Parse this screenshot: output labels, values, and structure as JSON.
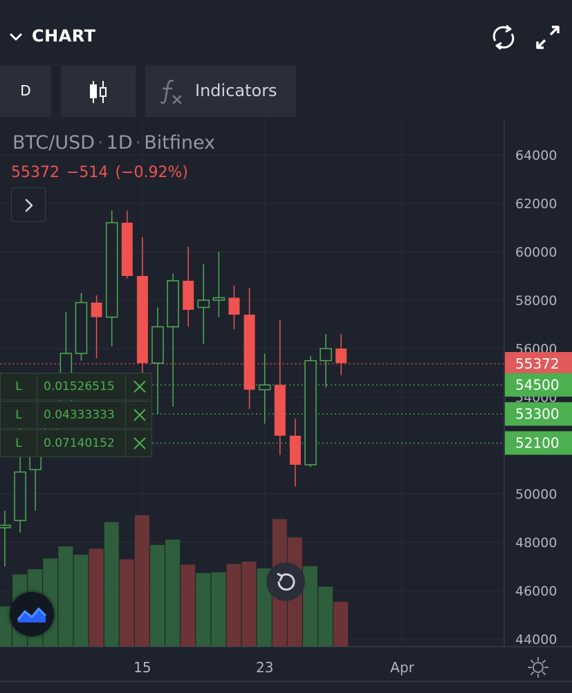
{
  "header": {
    "title": "CHART"
  },
  "toolbar": {
    "interval_label": "D",
    "indicators_label": "Indicators"
  },
  "legend": {
    "symbol": "BTC/USD",
    "interval": "1D",
    "exchange": "Bitfinex",
    "separator": "·",
    "last_price": "55372",
    "change": "−514",
    "change_percent": "(−0.92%)"
  },
  "orders": [
    {
      "side": "L",
      "amount": "0.01526515",
      "price": 54500
    },
    {
      "side": "L",
      "amount": "0.04333333",
      "price": 53300
    },
    {
      "side": "L",
      "amount": "0.07140152",
      "price": 52100
    }
  ],
  "colors": {
    "up": "#4caf50",
    "down": "#ef5350",
    "background": "#1e222d",
    "grid": "#2a2e39",
    "axis_text": "#d1d4dc"
  },
  "icons": [
    "chevron-down-icon",
    "sync-icon",
    "expand-icon",
    "candlestick-icon",
    "fx-icon",
    "chevron-right-icon",
    "close-icon",
    "reset-icon",
    "logo-icon",
    "settings-icon"
  ],
  "chart_data": {
    "type": "candlestick",
    "symbol": "BTC/USD",
    "interval": "1D",
    "y_ticks": [
      44000,
      46000,
      48000,
      50000,
      52000,
      54000,
      56000,
      58000,
      60000,
      62000,
      64000
    ],
    "y_tick_labels": [
      "44000",
      "46000",
      "48000",
      "50000",
      "52000",
      "54000",
      "56000",
      "58000",
      "60000",
      "62000",
      "64000"
    ],
    "ylim": [
      43700,
      65100
    ],
    "x_ticks": [
      {
        "label": "15",
        "index": 9
      },
      {
        "label": "23",
        "index": 17
      },
      {
        "label": "Apr",
        "index": 26
      }
    ],
    "last_price": {
      "value": 55372,
      "label": "55372"
    },
    "order_levels": [
      {
        "value": 54500,
        "label": "54500"
      },
      {
        "value": 53300,
        "label": "53300"
      },
      {
        "value": 52100,
        "label": "52100"
      }
    ],
    "candles": [
      {
        "open": 48600,
        "high": 49300,
        "low": 47000,
        "close": 48700,
        "volume": 5.3
      },
      {
        "open": 48900,
        "high": 53200,
        "low": 48400,
        "close": 50900,
        "volume": 9.5
      },
      {
        "open": 51000,
        "high": 51800,
        "low": 49300,
        "close": 51900,
        "volume": 10.2
      },
      {
        "open": 52000,
        "high": 53300,
        "low": 51500,
        "close": 53300,
        "volume": 11.6
      },
      {
        "open": 53300,
        "high": 57500,
        "low": 52800,
        "close": 55800,
        "volume": 13.2
      },
      {
        "open": 55800,
        "high": 58300,
        "low": 55500,
        "close": 57900,
        "volume": 12.1
      },
      {
        "open": 57900,
        "high": 58200,
        "low": 55600,
        "close": 57300,
        "volume": 12.9
      },
      {
        "open": 57300,
        "high": 61700,
        "low": 56100,
        "close": 61200,
        "volume": 16.4
      },
      {
        "open": 61200,
        "high": 61700,
        "low": 58900,
        "close": 59000,
        "volume": 11.5
      },
      {
        "open": 59000,
        "high": 60600,
        "low": 55000,
        "close": 55400,
        "volume": 17.3
      },
      {
        "open": 55400,
        "high": 57700,
        "low": 53300,
        "close": 56900,
        "volume": 13.4
      },
      {
        "open": 56900,
        "high": 59100,
        "low": 53600,
        "close": 58800,
        "volume": 14.1
      },
      {
        "open": 58800,
        "high": 60200,
        "low": 56900,
        "close": 57600,
        "volume": 10.8
      },
      {
        "open": 57700,
        "high": 59500,
        "low": 56200,
        "close": 58000,
        "volume": 9.7
      },
      {
        "open": 58000,
        "high": 60000,
        "low": 57300,
        "close": 58100,
        "volume": 9.8
      },
      {
        "open": 58100,
        "high": 58600,
        "low": 56800,
        "close": 57400,
        "volume": 10.9
      },
      {
        "open": 57400,
        "high": 58500,
        "low": 53500,
        "close": 54300,
        "volume": 11.2
      },
      {
        "open": 54300,
        "high": 55800,
        "low": 52900,
        "close": 54500,
        "volume": 10.3
      },
      {
        "open": 54500,
        "high": 57200,
        "low": 51600,
        "close": 52400,
        "volume": 16.8
      },
      {
        "open": 52400,
        "high": 53100,
        "low": 50300,
        "close": 51200,
        "volume": 14.4
      },
      {
        "open": 51200,
        "high": 55700,
        "low": 51100,
        "close": 55500,
        "volume": 10.6
      },
      {
        "open": 55500,
        "high": 56600,
        "low": 54400,
        "close": 56000,
        "volume": 7.9
      },
      {
        "open": 56000,
        "high": 56600,
        "low": 54900,
        "close": 55400,
        "volume": 5.9
      }
    ]
  }
}
